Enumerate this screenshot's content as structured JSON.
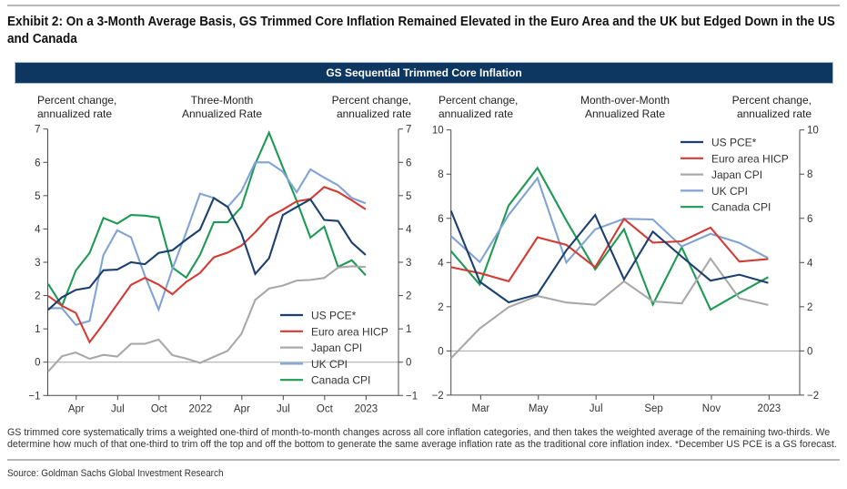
{
  "page": {
    "title": "Exhibit 2: On a 3-Month Average Basis, GS Trimmed Core Inflation Remained Elevated in the Euro Area and the UK but Edged Down in the US and Canada",
    "panel_header": "GS Sequential Trimmed Core Inflation",
    "footnote": "GS trimmed core systematically trims a weighted one-third of month-to-month changes across all core inflation categories, and then takes the weighted average of the remaining two-thirds. We determine how much of that one-third to trim off the top and off the bottom to generate the same average inflation rate as the traditional core inflation index. *December US PCE is a GS forecast.",
    "source": "Source: Goldman Sachs Global Investment Research"
  },
  "colors": {
    "panel_header_bg": "#0d3661",
    "axis": "#4a4a4a",
    "zero_line": "#a6a6a6",
    "tick_text": "#333333"
  },
  "chart_data": [
    {
      "type": "line",
      "title": [
        "Three-Month",
        "Annualized Rate"
      ],
      "ylabel_left": [
        "Percent change,",
        "annualized rate"
      ],
      "ylabel_right": [
        "Percent change,",
        "annualized rate"
      ],
      "ylim": [
        -1,
        7
      ],
      "yticks": [
        -1,
        0,
        1,
        2,
        3,
        4,
        5,
        6,
        7
      ],
      "ytick_labels": [
        "−1",
        "0",
        "1",
        "2",
        "3",
        "4",
        "5",
        "6",
        "7"
      ],
      "xtick_dates": [
        "2021-04",
        "2021-07",
        "2021-10",
        "2022-01",
        "2022-04",
        "2022-07",
        "2022-10",
        "2023-01"
      ],
      "xtick_labels": [
        "Apr",
        "Jul",
        "Oct",
        "2022",
        "Apr",
        "Jul",
        "Oct",
        "2023"
      ],
      "grid": false,
      "legend": "bottom-right",
      "x": [
        "2021-01",
        "2021-02",
        "2021-03",
        "2021-04",
        "2021-05",
        "2021-06",
        "2021-07",
        "2021-08",
        "2021-09",
        "2021-10",
        "2021-11",
        "2021-12",
        "2022-01",
        "2022-02",
        "2022-03",
        "2022-04",
        "2022-05",
        "2022-06",
        "2022-07",
        "2022-08",
        "2022-09",
        "2022-10",
        "2022-11",
        "2022-12"
      ],
      "series": [
        {
          "key": "us-pce",
          "name": "US PCE*",
          "color": "#1b3f6e",
          "values": [
            1.57,
            1.95,
            2.17,
            2.24,
            2.76,
            2.78,
            3.0,
            2.94,
            3.28,
            3.36,
            3.68,
            3.98,
            4.93,
            4.66,
            3.86,
            2.65,
            3.12,
            4.42,
            4.66,
            4.89,
            4.27,
            4.24,
            3.59,
            3.22
          ]
        },
        {
          "key": "euro-area-hicp",
          "name": "Euro area HICP",
          "color": "#d33b34",
          "values": [
            1.99,
            1.69,
            1.48,
            0.6,
            1.15,
            1.74,
            2.32,
            2.53,
            2.33,
            2.04,
            2.41,
            2.68,
            3.15,
            3.29,
            3.5,
            3.9,
            4.36,
            4.58,
            4.83,
            4.9,
            5.26,
            5.11,
            4.86,
            4.59
          ]
        },
        {
          "key": "japan-cpi",
          "name": "Japan CPI",
          "color": "#a8a8a8",
          "values": [
            -0.28,
            0.18,
            0.29,
            0.1,
            0.22,
            0.17,
            0.55,
            0.55,
            0.68,
            0.21,
            0.11,
            -0.02,
            0.16,
            0.34,
            0.85,
            1.87,
            2.21,
            2.3,
            2.45,
            2.47,
            2.53,
            2.84,
            2.88,
            2.86
          ]
        },
        {
          "key": "uk-cpi",
          "name": "UK CPI",
          "color": "#7fa4d4",
          "values": [
            1.62,
            1.62,
            1.12,
            1.24,
            3.22,
            3.96,
            3.75,
            2.6,
            1.58,
            2.8,
            3.9,
            5.06,
            4.93,
            4.66,
            5.13,
            6.0,
            6.0,
            5.72,
            5.1,
            5.79,
            5.54,
            5.31,
            4.93,
            4.77
          ]
        },
        {
          "key": "canada-cpi",
          "name": "Canada CPI",
          "color": "#1e9a54",
          "values": [
            2.35,
            1.69,
            2.75,
            3.28,
            4.33,
            4.16,
            4.42,
            4.4,
            4.34,
            2.84,
            2.54,
            3.22,
            4.2,
            4.2,
            4.66,
            5.95,
            6.89,
            5.85,
            4.85,
            3.74,
            4.07,
            2.86,
            3.06,
            2.61
          ]
        }
      ]
    },
    {
      "type": "line",
      "title": [
        "Month-over-Month",
        "Annualized Rate"
      ],
      "ylabel_left": [
        "Percent change,",
        "annualized rate"
      ],
      "ylabel_right": [
        "Percent change,",
        "annualized rate"
      ],
      "ylim": [
        -2,
        10
      ],
      "yticks": [
        -2,
        0,
        2,
        4,
        6,
        8,
        10
      ],
      "ytick_labels": [
        "−2",
        "0",
        "2",
        "4",
        "6",
        "8",
        "10"
      ],
      "xtick_dates": [
        "2022-03",
        "2022-05",
        "2022-07",
        "2022-09",
        "2022-11",
        "2023-01"
      ],
      "xtick_labels": [
        "Mar",
        "May",
        "Jul",
        "Sep",
        "Nov",
        "2023"
      ],
      "grid": false,
      "legend": "top-right",
      "x": [
        "2022-01",
        "2022-02",
        "2022-03",
        "2022-04",
        "2022-05",
        "2022-06",
        "2022-07",
        "2022-08",
        "2022-09",
        "2022-10",
        "2022-11",
        "2022-12"
      ],
      "series": [
        {
          "key": "us-pce",
          "name": "US PCE*",
          "color": "#1b3f6e",
          "values": [
            6.34,
            3.13,
            2.2,
            2.56,
            4.55,
            6.15,
            3.24,
            5.4,
            4.27,
            3.18,
            3.45,
            3.08
          ]
        },
        {
          "key": "euro-area-hicp",
          "name": "Euro area HICP",
          "color": "#d33b34",
          "values": [
            3.79,
            3.52,
            3.15,
            5.14,
            4.8,
            3.79,
            5.97,
            4.9,
            4.96,
            5.58,
            4.04,
            4.16
          ]
        },
        {
          "key": "japan-cpi",
          "name": "Japan CPI",
          "color": "#a8a8a8",
          "values": [
            -0.33,
            1.02,
            1.98,
            2.49,
            2.19,
            2.09,
            3.15,
            2.24,
            2.15,
            4.18,
            2.38,
            2.08
          ]
        },
        {
          "key": "uk-cpi",
          "name": "UK CPI",
          "color": "#7fa4d4",
          "values": [
            5.2,
            4.02,
            6.15,
            7.82,
            4.0,
            5.5,
            5.98,
            5.95,
            4.73,
            5.3,
            4.89,
            4.2
          ]
        },
        {
          "key": "canada-cpi",
          "name": "Canada CPI",
          "color": "#1e9a54",
          "values": [
            4.52,
            3.0,
            6.58,
            8.28,
            5.9,
            3.69,
            5.51,
            2.1,
            4.69,
            1.87,
            2.62,
            3.34
          ]
        }
      ]
    }
  ]
}
